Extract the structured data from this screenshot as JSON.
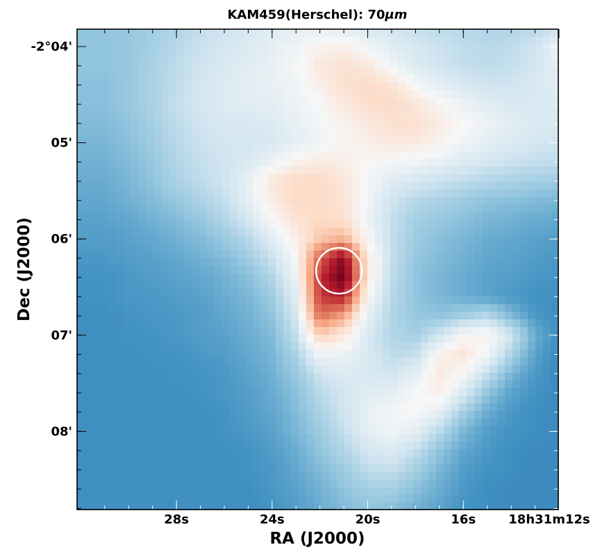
{
  "chart_data": {
    "type": "heatmap",
    "title_main": "KAM459(Herschel): 70",
    "title_unit": "μm",
    "xlabel": "RA (J2000)",
    "ylabel": "Dec (J2000)",
    "x_ticks": [
      "28s",
      "24s",
      "20s",
      "16s",
      "18h31m12s"
    ],
    "y_ticks": [
      "-2°04'",
      "05'",
      "06'",
      "07'",
      "08'"
    ],
    "colormap": "RdBu_r",
    "colors": {
      "low": "#2166ac",
      "mid": "#f7f7f7",
      "high": "#67001f",
      "marker": "#ffffff",
      "frame": "#000000"
    },
    "marker": {
      "shape": "circle",
      "ra_s": 21.2,
      "dec_arcmin": 6.33
    },
    "intensity_grid": {
      "x_ra_s": [
        31,
        30,
        29,
        28,
        27,
        26,
        25,
        24,
        23,
        22,
        21,
        20,
        19,
        18,
        17,
        16,
        15,
        14,
        13,
        12
      ],
      "y_dec_arcmin": [
        3.8,
        4.0,
        4.2,
        4.4,
        4.6,
        4.8,
        5.0,
        5.2,
        5.4,
        5.6,
        5.8,
        6.0,
        6.2,
        6.4,
        6.6,
        6.8,
        7.0,
        7.2,
        7.4,
        7.6,
        7.8,
        8.0,
        8.2,
        8.4,
        8.6,
        8.8
      ],
      "values": [
        [
          0.3,
          0.31,
          0.33,
          0.35,
          0.38,
          0.4,
          0.42,
          0.44,
          0.45,
          0.45,
          0.44,
          0.42,
          0.4,
          0.38,
          0.37,
          0.36,
          0.35,
          0.35,
          0.36,
          0.38
        ],
        [
          0.3,
          0.31,
          0.33,
          0.36,
          0.39,
          0.41,
          0.43,
          0.45,
          0.48,
          0.52,
          0.53,
          0.48,
          0.44,
          0.41,
          0.39,
          0.37,
          0.36,
          0.37,
          0.4,
          0.48
        ],
        [
          0.3,
          0.31,
          0.34,
          0.37,
          0.4,
          0.42,
          0.44,
          0.46,
          0.49,
          0.55,
          0.58,
          0.55,
          0.48,
          0.43,
          0.4,
          0.38,
          0.37,
          0.38,
          0.41,
          0.45
        ],
        [
          0.29,
          0.31,
          0.34,
          0.37,
          0.41,
          0.43,
          0.45,
          0.46,
          0.48,
          0.53,
          0.58,
          0.6,
          0.57,
          0.5,
          0.45,
          0.42,
          0.4,
          0.4,
          0.42,
          0.44
        ],
        [
          0.29,
          0.31,
          0.34,
          0.38,
          0.41,
          0.43,
          0.44,
          0.45,
          0.47,
          0.5,
          0.55,
          0.59,
          0.6,
          0.56,
          0.51,
          0.47,
          0.44,
          0.42,
          0.42,
          0.43
        ],
        [
          0.28,
          0.3,
          0.33,
          0.37,
          0.4,
          0.42,
          0.42,
          0.43,
          0.46,
          0.49,
          0.52,
          0.55,
          0.58,
          0.58,
          0.54,
          0.5,
          0.47,
          0.44,
          0.43,
          0.42
        ],
        [
          0.27,
          0.29,
          0.32,
          0.36,
          0.39,
          0.41,
          0.41,
          0.42,
          0.45,
          0.48,
          0.51,
          0.53,
          0.55,
          0.55,
          0.52,
          0.48,
          0.45,
          0.43,
          0.41,
          0.4
        ],
        [
          0.26,
          0.28,
          0.31,
          0.35,
          0.38,
          0.4,
          0.42,
          0.47,
          0.52,
          0.55,
          0.53,
          0.5,
          0.49,
          0.48,
          0.46,
          0.43,
          0.41,
          0.39,
          0.38,
          0.37
        ],
        [
          0.25,
          0.27,
          0.3,
          0.34,
          0.37,
          0.4,
          0.46,
          0.56,
          0.6,
          0.6,
          0.56,
          0.49,
          0.44,
          0.41,
          0.39,
          0.37,
          0.35,
          0.34,
          0.33,
          0.32
        ],
        [
          0.24,
          0.26,
          0.28,
          0.31,
          0.34,
          0.38,
          0.45,
          0.54,
          0.6,
          0.6,
          0.57,
          0.48,
          0.4,
          0.36,
          0.34,
          0.32,
          0.3,
          0.29,
          0.28,
          0.27
        ],
        [
          0.23,
          0.24,
          0.26,
          0.28,
          0.31,
          0.35,
          0.41,
          0.5,
          0.57,
          0.6,
          0.58,
          0.47,
          0.38,
          0.33,
          0.31,
          0.29,
          0.27,
          0.26,
          0.25,
          0.24
        ],
        [
          0.22,
          0.23,
          0.24,
          0.26,
          0.28,
          0.31,
          0.36,
          0.44,
          0.53,
          0.64,
          0.68,
          0.5,
          0.38,
          0.32,
          0.29,
          0.27,
          0.25,
          0.24,
          0.23,
          0.22
        ],
        [
          0.21,
          0.22,
          0.23,
          0.24,
          0.26,
          0.28,
          0.32,
          0.39,
          0.5,
          0.8,
          0.96,
          0.55,
          0.38,
          0.31,
          0.28,
          0.26,
          0.24,
          0.23,
          0.22,
          0.21
        ],
        [
          0.2,
          0.21,
          0.22,
          0.23,
          0.24,
          0.26,
          0.29,
          0.35,
          0.47,
          0.86,
          1.0,
          0.55,
          0.37,
          0.3,
          0.27,
          0.25,
          0.23,
          0.22,
          0.21,
          0.2
        ],
        [
          0.2,
          0.21,
          0.21,
          0.22,
          0.23,
          0.25,
          0.27,
          0.32,
          0.44,
          0.85,
          0.9,
          0.5,
          0.36,
          0.3,
          0.27,
          0.25,
          0.23,
          0.21,
          0.2,
          0.19
        ],
        [
          0.19,
          0.2,
          0.21,
          0.21,
          0.22,
          0.24,
          0.26,
          0.3,
          0.41,
          0.78,
          0.7,
          0.45,
          0.35,
          0.31,
          0.3,
          0.33,
          0.36,
          0.28,
          0.21,
          0.19
        ],
        [
          0.19,
          0.2,
          0.2,
          0.21,
          0.22,
          0.23,
          0.25,
          0.28,
          0.38,
          0.62,
          0.55,
          0.42,
          0.35,
          0.33,
          0.4,
          0.5,
          0.52,
          0.4,
          0.25,
          0.19
        ],
        [
          0.19,
          0.19,
          0.2,
          0.2,
          0.21,
          0.22,
          0.24,
          0.27,
          0.34,
          0.48,
          0.47,
          0.42,
          0.37,
          0.38,
          0.52,
          0.56,
          0.48,
          0.34,
          0.23,
          0.18
        ],
        [
          0.19,
          0.19,
          0.19,
          0.2,
          0.2,
          0.21,
          0.23,
          0.26,
          0.31,
          0.4,
          0.43,
          0.42,
          0.4,
          0.45,
          0.55,
          0.5,
          0.38,
          0.27,
          0.21,
          0.18
        ],
        [
          0.19,
          0.19,
          0.19,
          0.19,
          0.2,
          0.21,
          0.22,
          0.25,
          0.29,
          0.36,
          0.41,
          0.44,
          0.45,
          0.5,
          0.53,
          0.42,
          0.3,
          0.23,
          0.2,
          0.18
        ],
        [
          0.19,
          0.19,
          0.19,
          0.19,
          0.19,
          0.2,
          0.22,
          0.24,
          0.28,
          0.34,
          0.4,
          0.46,
          0.49,
          0.5,
          0.45,
          0.33,
          0.25,
          0.21,
          0.19,
          0.18
        ],
        [
          0.19,
          0.19,
          0.19,
          0.19,
          0.19,
          0.2,
          0.21,
          0.23,
          0.27,
          0.32,
          0.38,
          0.45,
          0.48,
          0.45,
          0.36,
          0.27,
          0.22,
          0.2,
          0.19,
          0.18
        ],
        [
          0.19,
          0.19,
          0.19,
          0.19,
          0.19,
          0.19,
          0.2,
          0.22,
          0.25,
          0.3,
          0.35,
          0.41,
          0.43,
          0.38,
          0.3,
          0.24,
          0.21,
          0.19,
          0.18,
          0.18
        ],
        [
          0.19,
          0.19,
          0.19,
          0.19,
          0.19,
          0.19,
          0.2,
          0.21,
          0.24,
          0.28,
          0.32,
          0.37,
          0.38,
          0.33,
          0.27,
          0.22,
          0.2,
          0.19,
          0.18,
          0.18
        ],
        [
          0.19,
          0.19,
          0.19,
          0.19,
          0.19,
          0.19,
          0.19,
          0.21,
          0.23,
          0.26,
          0.3,
          0.33,
          0.33,
          0.29,
          0.25,
          0.21,
          0.19,
          0.18,
          0.18,
          0.18
        ],
        [
          0.19,
          0.19,
          0.19,
          0.19,
          0.19,
          0.19,
          0.19,
          0.2,
          0.22,
          0.25,
          0.28,
          0.3,
          0.29,
          0.26,
          0.23,
          0.2,
          0.19,
          0.18,
          0.18,
          0.18
        ]
      ]
    }
  }
}
